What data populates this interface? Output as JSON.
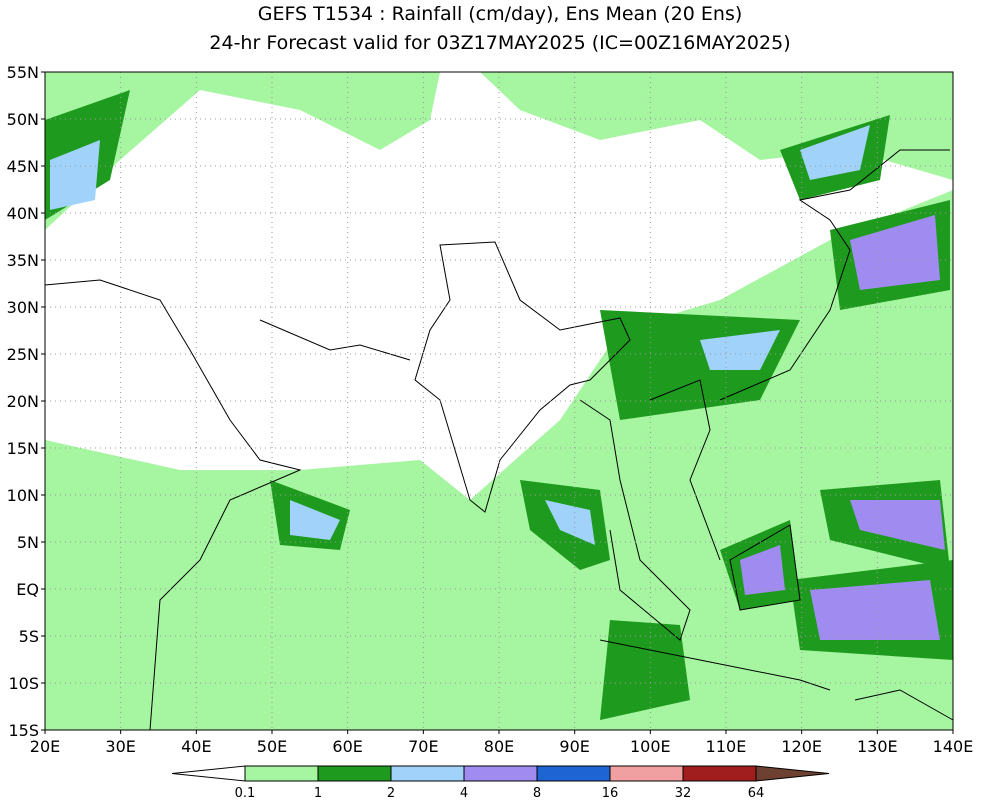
{
  "title": [
    "GEFS T1534 : Rainfall (cm/day), Ens Mean (20 Ens)",
    "24-hr Forecast valid for 03Z17MAY2025 (IC=00Z16MAY2025)"
  ],
  "lat_labels": [
    "55N",
    "50N",
    "45N",
    "40N",
    "35N",
    "30N",
    "25N",
    "20N",
    "15N",
    "10N",
    "5N",
    "EQ",
    "5S",
    "10S",
    "15S"
  ],
  "lon_labels": [
    "20E",
    "30E",
    "40E",
    "50E",
    "60E",
    "70E",
    "80E",
    "90E",
    "100E",
    "110E",
    "120E",
    "130E",
    "140E"
  ],
  "colorbar": {
    "labels": [
      "0.1",
      "1",
      "2",
      "4",
      "8",
      "16",
      "32",
      "64"
    ],
    "colors": [
      "#ffffff",
      "#a6f5a0",
      "#1e9b1e",
      "#a0d2fa",
      "#a08cf0",
      "#1e64d2",
      "#f0a0a0",
      "#a01e1e",
      "#6e4032"
    ]
  }
}
